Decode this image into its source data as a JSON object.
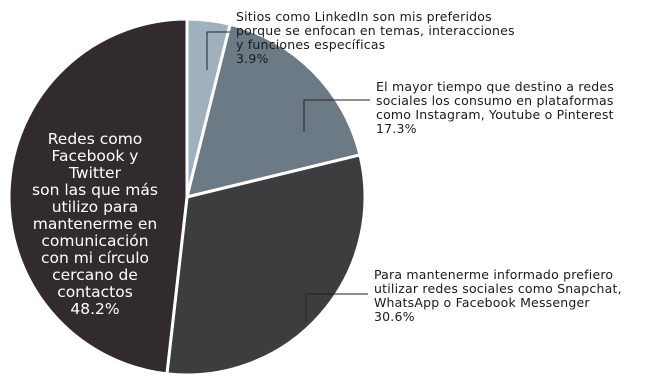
{
  "chart_data": {
    "type": "pie",
    "slices": [
      {
        "label_lines": [
          "Sitios como LinkedIn son mis preferidos",
          "porque se enfocan en temas, interacciones",
          "y funciones específicas"
        ],
        "value": 3.9,
        "value_label": "3.9%",
        "color": "#9fb1bd"
      },
      {
        "label_lines": [
          "El mayor tiempo que destino a redes",
          "sociales los consumo en plataformas",
          "como Instagram, Youtube o Pinterest"
        ],
        "value": 17.3,
        "value_label": "17.3%",
        "color": "#6b7a85"
      },
      {
        "label_lines": [
          "Para mantenerme informado prefiero",
          "utilizar redes sociales como Snapchat,",
          "WhatsApp o Facebook Messenger"
        ],
        "value": 30.6,
        "value_label": "30.6%",
        "color": "#3d3c3e"
      },
      {
        "label_lines": [
          "Redes como",
          "Facebook y",
          "Twitter",
          "son las que más",
          "utilizo para",
          "mantenerme en",
          "comunicación",
          "con mi círculo",
          "cercano de",
          "contactos"
        ],
        "value": 48.2,
        "value_label": "48.2%",
        "color": "#312a2e"
      }
    ]
  }
}
